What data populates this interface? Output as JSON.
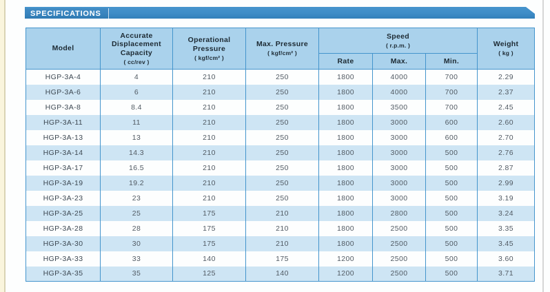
{
  "banner": {
    "title": "SPECIFICATIONS"
  },
  "theme": {
    "banner_blue": "#3E8CC7",
    "header_bg": "#AAD2EC",
    "stripe_bg": "#CEE5F4",
    "border_blue": "#4394CC",
    "header_text": "#1D2A33",
    "body_text": "#515A63",
    "gutter_cream": "#FAF5DD"
  },
  "table": {
    "headers": {
      "model": "Model",
      "capacity_label": "Accurate Displacement Capacity",
      "capacity_unit": "( cc/rev )",
      "op_pressure_label": "Operational Pressure",
      "op_pressure_unit": "( kgf/cm² )",
      "max_pressure_label": "Max. Pressure",
      "max_pressure_unit": "( kgf/cm² )",
      "speed_label": "Speed",
      "speed_unit": "( r.p.m. )",
      "speed_sub": [
        "Rate",
        "Max.",
        "Min."
      ],
      "weight_label": "Weight",
      "weight_unit": "( kg )"
    },
    "rows": [
      [
        "HGP-3A-4",
        "4",
        "210",
        "250",
        "1800",
        "4000",
        "700",
        "2.29"
      ],
      [
        "HGP-3A-6",
        "6",
        "210",
        "250",
        "1800",
        "4000",
        "700",
        "2.37"
      ],
      [
        "HGP-3A-8",
        "8.4",
        "210",
        "250",
        "1800",
        "3500",
        "700",
        "2.45"
      ],
      [
        "HGP-3A-11",
        "11",
        "210",
        "250",
        "1800",
        "3000",
        "600",
        "2.60"
      ],
      [
        "HGP-3A-13",
        "13",
        "210",
        "250",
        "1800",
        "3000",
        "600",
        "2.70"
      ],
      [
        "HGP-3A-14",
        "14.3",
        "210",
        "250",
        "1800",
        "3000",
        "500",
        "2.76"
      ],
      [
        "HGP-3A-17",
        "16.5",
        "210",
        "250",
        "1800",
        "3000",
        "500",
        "2.87"
      ],
      [
        "HGP-3A-19",
        "19.2",
        "210",
        "250",
        "1800",
        "3000",
        "500",
        "2.99"
      ],
      [
        "HGP-3A-23",
        "23",
        "210",
        "250",
        "1800",
        "3000",
        "500",
        "3.19"
      ],
      [
        "HGP-3A-25",
        "25",
        "175",
        "210",
        "1800",
        "2800",
        "500",
        "3.24"
      ],
      [
        "HGP-3A-28",
        "28",
        "175",
        "210",
        "1800",
        "2500",
        "500",
        "3.35"
      ],
      [
        "HGP-3A-30",
        "30",
        "175",
        "210",
        "1800",
        "2500",
        "500",
        "3.45"
      ],
      [
        "HGP-3A-33",
        "33",
        "140",
        "175",
        "1200",
        "2500",
        "500",
        "3.60"
      ],
      [
        "HGP-3A-35",
        "35",
        "125",
        "140",
        "1200",
        "2500",
        "500",
        "3.71"
      ]
    ]
  }
}
